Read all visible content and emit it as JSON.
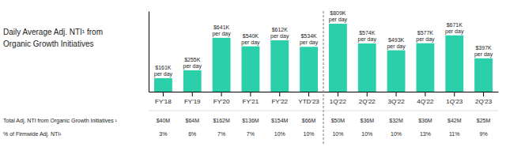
{
  "chart_data": {
    "type": "bar",
    "title": "Daily Average Adj. NTI¹ from\nOrganic Growth Initiatives",
    "categories": [
      "FY'18",
      "FY'19",
      "FY'20",
      "FY'21",
      "FY'22",
      "YTD'23",
      "1Q'22",
      "2Q'22",
      "3Q'22",
      "4Q'22",
      "1Q'23",
      "2Q'23"
    ],
    "values": [
      161,
      255,
      641,
      540,
      612,
      534,
      809,
      574,
      493,
      577,
      671,
      397
    ],
    "value_labels": [
      "$161K\nper day",
      "$255K\nper day",
      "$641K\nper day",
      "$540K\nper day",
      "$612K\nper day",
      "$534K\nper day",
      "$809K\nper day",
      "$574K\nper day",
      "$493K\nper day",
      "$577K\nper day",
      "$671K\nper day",
      "$397K\nper day"
    ],
    "color": "#2bcfaa",
    "ylim": [
      0,
      960
    ],
    "tick_labels": "x",
    "grid": false,
    "divider_after": "YTD'23",
    "footer_rows": [
      {
        "label": "Total Adj. NTI from Organic Growth Initiatives ¹",
        "cells": [
          "$40M",
          "$64M",
          "$162M",
          "$136M",
          "$154M",
          "$66M",
          "$50M",
          "$36M",
          "$32M",
          "$36M",
          "$42M",
          "$25M"
        ]
      },
      {
        "label": "% of Firmwide Adj. NTI¹",
        "cells": [
          "3%",
          "6%",
          "7%",
          "7%",
          "10%",
          "10%",
          "10%",
          "10%",
          "10%",
          "13%",
          "11%",
          "9%"
        ]
      }
    ]
  }
}
